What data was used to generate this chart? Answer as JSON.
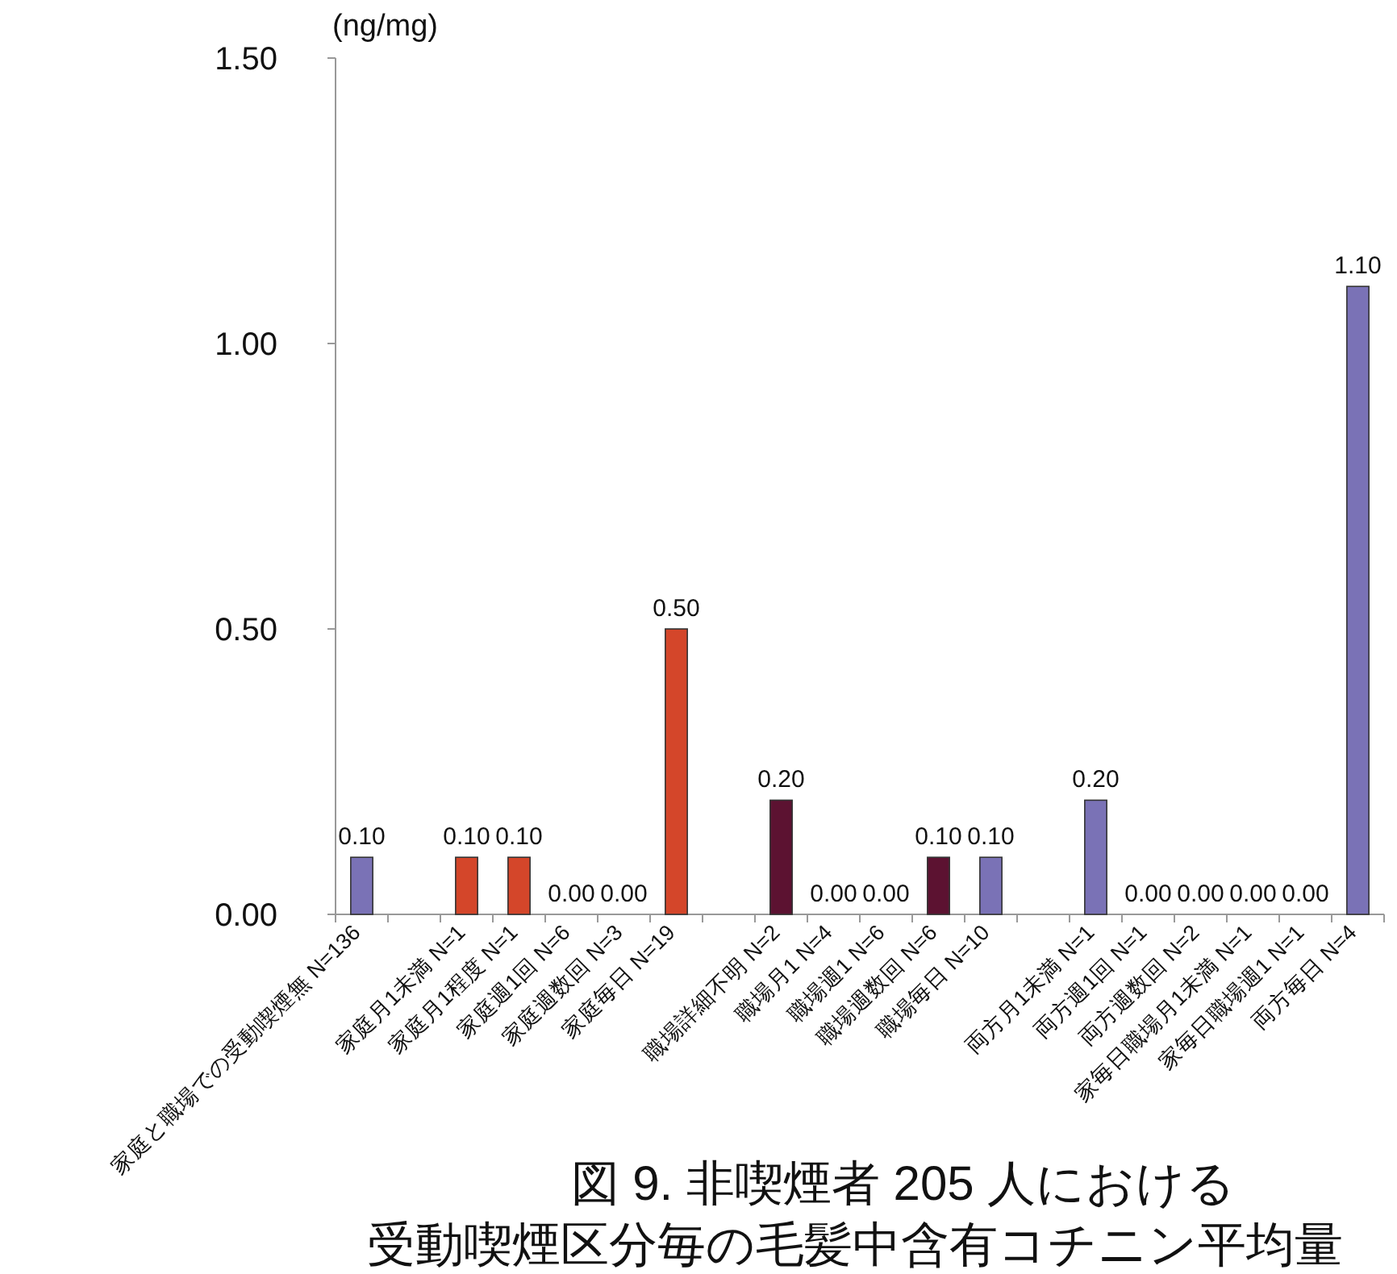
{
  "chart_data": {
    "type": "bar",
    "title": "図 9. 非喫煙者 205 人における",
    "subtitle": "受動喫煙区分毎の毛髪中含有コチニン平均量",
    "ylabel": "(ng/mg)",
    "categories": [
      "家庭と職場での受動喫煙無 N=136",
      null,
      "家庭月1未満 N=1",
      "家庭月1程度 N=1",
      "家庭週1回 N=6",
      "家庭週数回 N=3",
      "家庭毎日 N=19",
      null,
      "職場詳細不明 N=2",
      "職場月1 N=4",
      "職場週1 N=6",
      "職場週数回 N=6",
      "職場毎日 N=10",
      null,
      "両方月1未満 N=1",
      "両方週1回 N=1",
      "両方週数回 N=2",
      "家毎日職場月1未満 N=1",
      "家毎日職場週1 N=1",
      "両方毎日 N=4"
    ],
    "values": [
      0.1,
      null,
      0.1,
      0.1,
      0.0,
      0.0,
      0.5,
      null,
      0.2,
      0.0,
      0.0,
      0.1,
      0.1,
      null,
      0.2,
      0.0,
      0.0,
      0.0,
      0.0,
      1.1
    ],
    "value_labels": [
      "0.10",
      null,
      "0.10",
      "0.10",
      "0.00",
      "0.00",
      "0.50",
      null,
      "0.20",
      "0.00",
      "0.00",
      "0.10",
      "0.10",
      null,
      "0.20",
      "0.00",
      "0.00",
      "0.00",
      "0.00",
      "1.10"
    ],
    "colors": [
      "#7a72b6",
      null,
      "#d4462a",
      "#d4462a",
      "#d4462a",
      "#d4462a",
      "#d4462a",
      null,
      "#5c1231",
      "#5c1231",
      "#5c1231",
      "#5c1231",
      "#7a72b6",
      null,
      "#7a72b6",
      "#7a72b6",
      "#7a72b6",
      "#7a72b6",
      "#7a72b6",
      "#7a72b6"
    ],
    "ylim": [
      0,
      1.5
    ],
    "yticks": [
      {
        "value": 0,
        "label": "0.00"
      },
      {
        "value": 0.5,
        "label": "0.50"
      },
      {
        "value": 1,
        "label": "1.00"
      },
      {
        "value": 1.5,
        "label": "1.50"
      }
    ],
    "grid": false
  }
}
